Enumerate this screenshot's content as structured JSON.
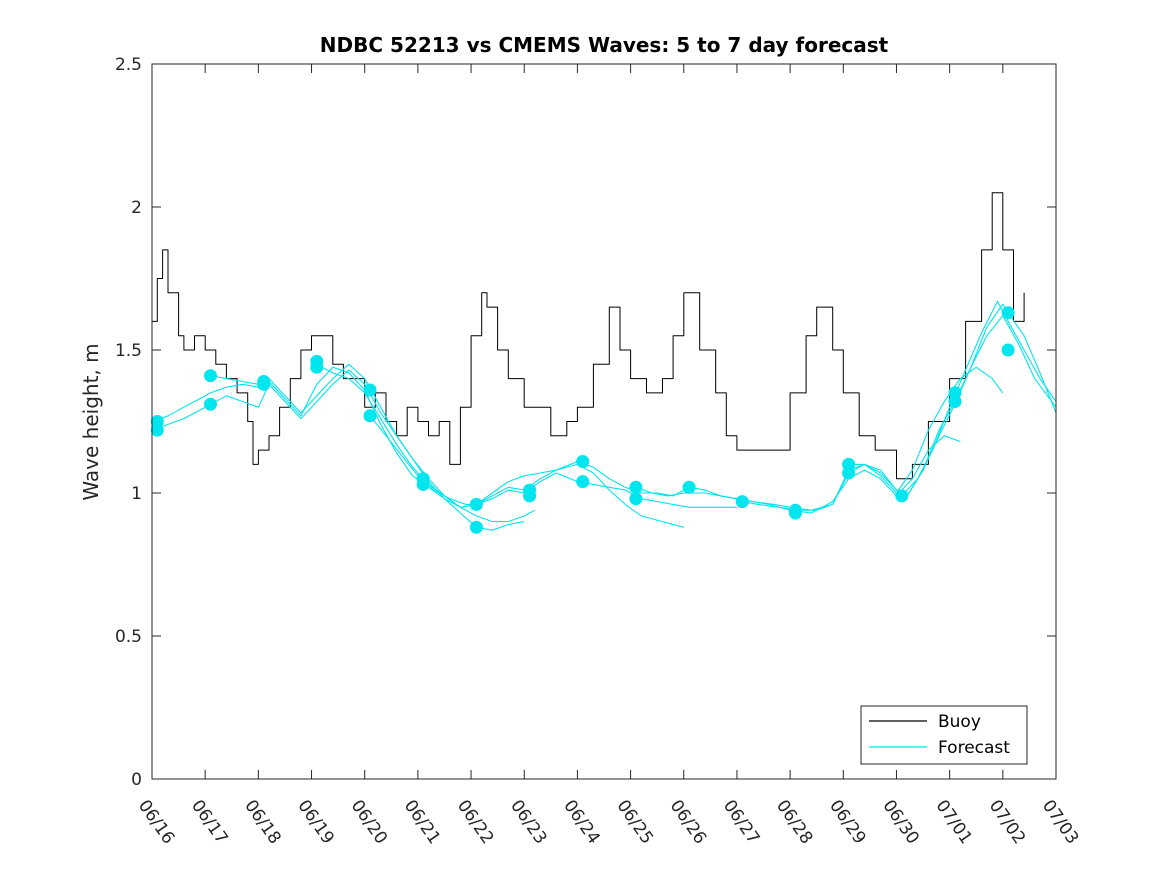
{
  "chart_data": {
    "type": "line",
    "title": "NDBC 52213 vs CMEMS Waves: 5 to 7 day forecast",
    "xlabel": "",
    "ylabel": "Wave height, m",
    "xlim": [
      0,
      17
    ],
    "ylim": [
      0,
      2.5
    ],
    "x_ticks": [
      0,
      1,
      2,
      3,
      4,
      5,
      6,
      7,
      8,
      9,
      10,
      11,
      12,
      13,
      14,
      15,
      16,
      17
    ],
    "x_tick_labels": [
      "06/16",
      "06/17",
      "06/18",
      "06/19",
      "06/20",
      "06/21",
      "06/22",
      "06/23",
      "06/24",
      "06/25",
      "06/26",
      "06/27",
      "06/28",
      "06/29",
      "06/30",
      "07/01",
      "07/02",
      "07/03"
    ],
    "y_ticks": [
      0,
      0.5,
      1,
      1.5,
      2,
      2.5
    ],
    "y_tick_labels": [
      "0",
      "0.5",
      "1",
      "1.5",
      "2",
      "2.5"
    ],
    "grid": false,
    "legend": {
      "placement": "bottom-right",
      "entries": [
        {
          "name": "Buoy",
          "color": "#000000"
        },
        {
          "name": "Forecast",
          "color": "#00e5ee"
        }
      ]
    },
    "series": [
      {
        "name": "Buoy",
        "color": "#000000",
        "x": [
          0,
          0.1,
          0.2,
          0.3,
          0.4,
          0.5,
          0.6,
          0.8,
          1.0,
          1.2,
          1.4,
          1.6,
          1.8,
          1.9,
          2.0,
          2.2,
          2.4,
          2.6,
          2.8,
          3.0,
          3.2,
          3.4,
          3.6,
          3.8,
          4.0,
          4.2,
          4.4,
          4.6,
          4.8,
          5.0,
          5.2,
          5.4,
          5.6,
          5.8,
          6.0,
          6.2,
          6.3,
          6.5,
          6.7,
          7.0,
          7.3,
          7.5,
          7.8,
          8.0,
          8.3,
          8.6,
          8.8,
          9.0,
          9.3,
          9.6,
          9.8,
          10.0,
          10.3,
          10.6,
          10.8,
          11.0,
          11.3,
          11.6,
          12.0,
          12.3,
          12.5,
          12.8,
          13.0,
          13.3,
          13.6,
          14.0,
          14.3,
          14.6,
          15.0,
          15.3,
          15.6,
          15.8,
          16.0,
          16.2,
          16.4
        ],
        "y": [
          1.6,
          1.75,
          1.85,
          1.7,
          1.7,
          1.55,
          1.5,
          1.55,
          1.5,
          1.45,
          1.4,
          1.35,
          1.25,
          1.1,
          1.15,
          1.2,
          1.3,
          1.4,
          1.5,
          1.55,
          1.55,
          1.45,
          1.4,
          1.4,
          1.3,
          1.35,
          1.25,
          1.2,
          1.3,
          1.25,
          1.2,
          1.25,
          1.1,
          1.3,
          1.55,
          1.7,
          1.65,
          1.5,
          1.4,
          1.3,
          1.3,
          1.2,
          1.25,
          1.3,
          1.45,
          1.65,
          1.5,
          1.4,
          1.35,
          1.4,
          1.55,
          1.7,
          1.5,
          1.35,
          1.2,
          1.15,
          1.15,
          1.15,
          1.35,
          1.55,
          1.65,
          1.5,
          1.35,
          1.2,
          1.15,
          1.05,
          1.1,
          1.25,
          1.4,
          1.6,
          1.85,
          2.05,
          1.85,
          1.6,
          1.7
        ]
      },
      {
        "name": "",
        "color": "#00e5ee",
        "x": [
          0,
          0.3,
          0.6,
          0.9,
          1.1,
          1.4,
          1.7,
          2.0,
          2.2,
          2.5,
          2.8,
          3.1,
          3.4,
          3.7,
          4.0,
          4.3,
          4.6,
          4.9,
          5.2,
          5.5,
          5.8,
          6.1,
          6.4,
          6.7,
          7.0
        ],
        "y": [
          1.22,
          1.24,
          1.26,
          1.29,
          1.31,
          1.34,
          1.32,
          1.3,
          1.38,
          1.32,
          1.26,
          1.32,
          1.38,
          1.43,
          1.38,
          1.28,
          1.2,
          1.12,
          1.04,
          0.98,
          0.93,
          0.88,
          0.87,
          0.89,
          0.9
        ]
      },
      {
        "name": "",
        "color": "#00e5ee",
        "x": [
          0,
          0.3,
          0.6,
          0.9,
          1.1,
          1.4,
          1.7,
          2.0,
          2.2,
          2.5,
          2.8,
          3.1,
          3.4,
          3.7,
          4.0,
          4.3,
          4.6,
          4.9,
          5.2,
          5.5,
          5.8,
          6.1,
          6.4,
          6.7,
          7.0,
          7.2
        ],
        "y": [
          1.25,
          1.27,
          1.3,
          1.33,
          1.35,
          1.37,
          1.38,
          1.37,
          1.4,
          1.34,
          1.28,
          1.34,
          1.4,
          1.45,
          1.4,
          1.3,
          1.2,
          1.12,
          1.05,
          0.99,
          0.95,
          0.92,
          0.9,
          0.9,
          0.92,
          0.94
        ]
      },
      {
        "name": "",
        "color": "#00e5ee",
        "x": [
          1.1,
          1.4,
          1.7,
          2.0,
          2.2,
          2.5,
          2.8,
          3.1,
          3.4,
          3.7,
          4.0,
          4.3,
          4.6,
          4.9,
          5.2,
          5.5,
          5.8,
          6.1,
          6.4,
          6.7,
          7.0,
          7.3,
          7.6,
          8.0,
          8.3,
          8.6,
          8.9,
          9.2,
          9.6,
          10.0
        ],
        "y": [
          1.41,
          1.4,
          1.39,
          1.38,
          1.39,
          1.33,
          1.27,
          1.38,
          1.44,
          1.42,
          1.36,
          1.24,
          1.14,
          1.06,
          1.02,
          0.98,
          0.95,
          0.96,
          0.99,
          1.02,
          1.01,
          1.05,
          1.08,
          1.1,
          1.07,
          1.01,
          0.96,
          0.92,
          0.9,
          0.88
        ]
      },
      {
        "name": "",
        "color": "#00e5ee",
        "x": [
          3.1,
          3.4,
          3.7,
          4.0,
          4.3,
          4.6,
          4.9,
          5.2,
          5.5,
          5.8,
          6.1,
          6.4,
          6.7,
          7.0,
          7.3,
          7.6,
          8.0,
          8.3,
          8.6,
          8.9,
          9.2,
          9.5,
          9.8,
          10.1,
          10.5,
          10.8,
          11.0
        ],
        "y": [
          1.45,
          1.42,
          1.4,
          1.35,
          1.26,
          1.17,
          1.09,
          1.03,
          0.99,
          0.95,
          0.96,
          0.98,
          1.01,
          1.0,
          1.04,
          1.07,
          1.04,
          1.03,
          1.02,
          1.01,
          0.98,
          0.97,
          0.96,
          0.95,
          0.95,
          0.95,
          0.95
        ]
      },
      {
        "name": "",
        "color": "#00e5ee",
        "x": [
          4.1,
          4.4,
          4.7,
          5.0,
          5.3,
          5.6,
          5.9,
          6.1,
          6.4,
          6.7,
          7.0,
          7.3,
          7.6,
          8.0,
          8.3,
          8.6,
          8.9,
          9.2,
          9.5,
          9.8,
          10.1,
          10.4,
          10.7,
          11.0,
          11.3,
          11.6,
          12.0,
          12.4,
          12.8,
          13.1,
          13.4,
          13.7,
          14.0,
          14.3,
          14.6,
          14.9,
          15.2
        ],
        "y": [
          1.27,
          1.2,
          1.13,
          1.06,
          1.01,
          0.98,
          0.96,
          0.96,
          1.0,
          1.04,
          1.06,
          1.07,
          1.08,
          1.11,
          1.09,
          1.05,
          1.02,
          1.0,
          1.0,
          0.99,
          1.02,
          1.01,
          0.99,
          0.98,
          0.97,
          0.96,
          0.94,
          0.93,
          0.97,
          1.05,
          1.08,
          1.05,
          0.99,
          1.05,
          1.15,
          1.2,
          1.18
        ]
      },
      {
        "name": "",
        "color": "#00e5ee",
        "x": [
          9.1,
          9.4,
          9.7,
          10.0,
          10.4,
          10.7,
          11.0,
          11.3,
          11.7,
          12.0,
          12.4,
          12.8,
          13.1,
          13.4,
          13.7,
          14.0,
          14.3,
          14.6,
          14.9,
          15.2,
          15.5,
          15.8,
          16.0
        ],
        "y": [
          1.02,
          1.0,
          0.99,
          1.0,
          1.0,
          0.99,
          0.98,
          0.97,
          0.96,
          0.95,
          0.94,
          0.96,
          1.08,
          1.1,
          1.06,
          1.0,
          1.08,
          1.22,
          1.32,
          1.4,
          1.44,
          1.4,
          1.35
        ]
      },
      {
        "name": "",
        "color": "#00e5ee",
        "x": [
          11.1,
          11.4,
          11.8,
          12.1,
          12.5,
          12.8,
          13.1,
          13.4,
          13.7,
          14.0,
          14.2,
          14.5,
          14.8,
          15.1,
          15.4,
          15.7,
          16.0,
          16.3,
          16.6,
          17.0
        ],
        "y": [
          0.97,
          0.96,
          0.95,
          0.94,
          0.94,
          0.96,
          1.07,
          1.1,
          1.07,
          1.01,
          0.99,
          1.08,
          1.22,
          1.32,
          1.44,
          1.55,
          1.62,
          1.52,
          1.4,
          1.3
        ]
      },
      {
        "name": "",
        "color": "#00e5ee",
        "x": [
          13.1,
          13.4,
          13.7,
          14.0,
          14.2,
          14.5,
          14.8,
          15.1,
          15.4,
          15.7,
          16.0,
          16.1,
          16.4,
          16.7,
          17.0
        ],
        "y": [
          1.1,
          1.1,
          1.08,
          1.01,
          0.99,
          1.08,
          1.2,
          1.31,
          1.44,
          1.58,
          1.66,
          1.63,
          1.55,
          1.42,
          1.28
        ]
      },
      {
        "name": "",
        "color": "#00e5ee",
        "x": [
          14.1,
          14.4,
          14.7,
          15.0,
          15.3,
          15.6,
          15.9,
          16.1,
          16.4,
          16.7,
          17.0
        ],
        "y": [
          0.99,
          1.05,
          1.16,
          1.3,
          1.43,
          1.56,
          1.67,
          1.6,
          1.5,
          1.4,
          1.32
        ]
      }
    ],
    "markers": {
      "color": "#00e5ee",
      "points": [
        {
          "x": 0.1,
          "y": 1.25
        },
        {
          "x": 0.1,
          "y": 1.22
        },
        {
          "x": 1.1,
          "y": 1.41
        },
        {
          "x": 1.1,
          "y": 1.31
        },
        {
          "x": 2.1,
          "y": 1.39
        },
        {
          "x": 2.1,
          "y": 1.38
        },
        {
          "x": 3.1,
          "y": 1.46
        },
        {
          "x": 3.1,
          "y": 1.44
        },
        {
          "x": 4.1,
          "y": 1.36
        },
        {
          "x": 4.1,
          "y": 1.27
        },
        {
          "x": 5.1,
          "y": 1.05
        },
        {
          "x": 5.1,
          "y": 1.03
        },
        {
          "x": 6.1,
          "y": 0.96
        },
        {
          "x": 6.1,
          "y": 0.88
        },
        {
          "x": 7.1,
          "y": 1.01
        },
        {
          "x": 7.1,
          "y": 0.99
        },
        {
          "x": 8.1,
          "y": 1.11
        },
        {
          "x": 8.1,
          "y": 1.04
        },
        {
          "x": 9.1,
          "y": 1.02
        },
        {
          "x": 9.1,
          "y": 0.98
        },
        {
          "x": 10.1,
          "y": 1.02
        },
        {
          "x": 11.1,
          "y": 0.97
        },
        {
          "x": 12.1,
          "y": 0.94
        },
        {
          "x": 12.1,
          "y": 0.93
        },
        {
          "x": 13.1,
          "y": 1.1
        },
        {
          "x": 13.1,
          "y": 1.07
        },
        {
          "x": 14.1,
          "y": 0.99
        },
        {
          "x": 15.1,
          "y": 1.35
        },
        {
          "x": 15.1,
          "y": 1.32
        },
        {
          "x": 16.1,
          "y": 1.63
        },
        {
          "x": 16.1,
          "y": 1.5
        }
      ]
    }
  }
}
